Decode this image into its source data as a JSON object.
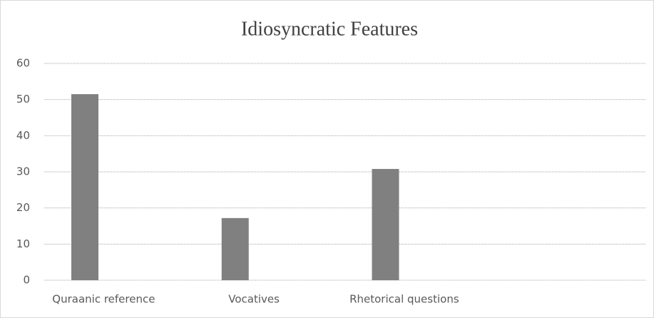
{
  "chart_data": {
    "type": "bar",
    "title": "Idiosyncratic Features",
    "categories": [
      "Quraanic reference",
      "Vocatives",
      "Rhetorical questions",
      null
    ],
    "values": [
      51.5,
      17.2,
      30.8,
      null
    ],
    "color": "#808080",
    "ylim": [
      0,
      60
    ],
    "yticks": [
      0,
      10,
      20,
      30,
      40,
      50,
      60
    ],
    "grid": true
  }
}
